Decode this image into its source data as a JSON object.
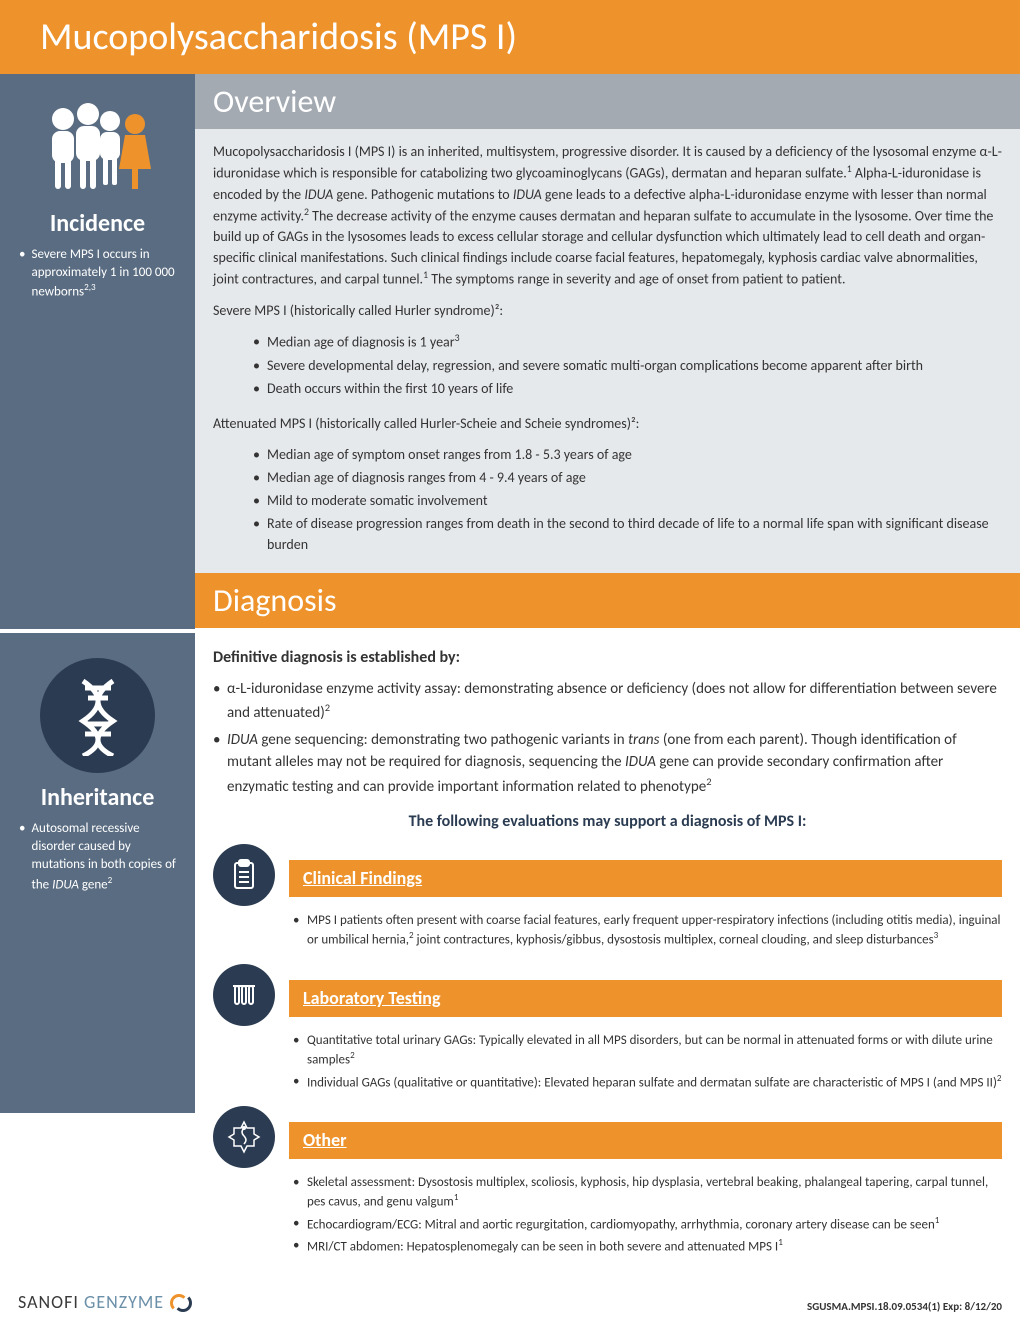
{
  "colors": {
    "orange": "#ee932b",
    "slate": "#5a6c81",
    "dark": "#2b3c52",
    "headerGray": "#a3aab2",
    "lightBg": "#e6e9ec"
  },
  "title": "Mucopolysaccharidosis (MPS I)",
  "sidebar": {
    "incidence": {
      "title": "Incidence",
      "text": "Severe MPS I occurs in approximately 1 in 100 000 newborns",
      "sup": "2,3"
    },
    "inheritance": {
      "title": "Inheritance",
      "text_pre": "Autosomal recessive disorder caused by mutations in both copies of the ",
      "text_gene": "IDUA",
      "text_post": " gene",
      "sup": "2"
    }
  },
  "overview": {
    "heading": "Overview",
    "para_parts": [
      {
        "t": "Mucopolysaccharidosis I (MPS I) is an inherited, multisystem, progressive disorder. It is caused by a deficiency of the lysosomal enzyme α-L-iduronidase which is responsible for catabolizing two glycoaminoglycans (GAGs), dermatan and heparan sulfate."
      },
      {
        "sup": "1"
      },
      {
        "t": " Alpha-L-iduronidase is encoded by the "
      },
      {
        "i": "IDUA"
      },
      {
        "t": " gene. Pathogenic mutations to "
      },
      {
        "i": "IDUA"
      },
      {
        "t": " gene leads to a defective alpha-L-iduronidase enzyme with lesser than normal enzyme activity."
      },
      {
        "sup": "2"
      },
      {
        "t": " The decrease activity of the enzyme causes dermatan and heparan sulfate to accumulate in the lysosome. Over time the build up of GAGs in the lysosomes leads to excess cellular storage and cellular dysfunction which ultimately lead to cell death and organ-specific clinical manifestations. Such clinical findings include coarse facial features, hepatomegaly, kyphosis cardiac valve abnormalities, joint contractures, and carpal tunnel."
      },
      {
        "sup": "1"
      },
      {
        "t": " The symptoms range in severity and age of onset from patient to patient."
      }
    ],
    "severe_intro": "Severe MPS I (historically called Hurler syndrome)²:",
    "severe_items": [
      {
        "text": "Median age of diagnosis is 1 year",
        "sup": "3"
      },
      {
        "text": "Severe developmental delay, regression, and severe somatic multi-organ complications become apparent after birth"
      },
      {
        "text": "Death occurs within the first 10 years of life"
      }
    ],
    "atten_intro": "Attenuated MPS I (historically called Hurler-Scheie and Scheie syndromes)²:",
    "atten_items": [
      {
        "text": "Median age of symptom onset ranges from 1.8 - 5.3 years of age"
      },
      {
        "text": "Median age of diagnosis ranges from 4 - 9.4 years of age"
      },
      {
        "text": "Mild to moderate somatic involvement"
      },
      {
        "text": "Rate of disease progression ranges from death in the second to third decade of life to a normal life span with significant disease burden"
      }
    ]
  },
  "diagnosis": {
    "heading": "Diagnosis",
    "sub": "Definitive diagnosis is established by:",
    "bullets": [
      {
        "parts": [
          {
            "t": "α-L-iduronidase enzyme activity assay: demonstrating absence or deficiency (does not allow for differentiation between severe and attenuated)"
          },
          {
            "sup": "2"
          }
        ]
      },
      {
        "parts": [
          {
            "i": "IDUA "
          },
          {
            "t": "gene sequencing: demonstrating two pathogenic variants in "
          },
          {
            "i": "trans "
          },
          {
            "t": "(one from each parent). Though identification of mutant alleles may not be required for diagnosis, sequencing the "
          },
          {
            "i": "IDUA"
          },
          {
            "t": " gene can provide secondary confirmation after enzymatic testing and can provide important information related to phenotype"
          },
          {
            "sup": "2"
          }
        ]
      }
    ],
    "support_line": "The following evaluations may support a diagnosis of MPS I:",
    "sections": [
      {
        "icon": "clipboard",
        "title": "Clinical Findings",
        "items": [
          {
            "parts": [
              {
                "t": "MPS I patients often present with coarse facial features, early frequent upper-respiratory infections (including otitis media), inguinal or umbilical hernia,"
              },
              {
                "sup": "2"
              },
              {
                "t": "  joint contractures, kyphosis/gibbus, dysostosis multiplex, corneal clouding, and sleep disturbances"
              },
              {
                "sup": "3"
              }
            ]
          }
        ]
      },
      {
        "icon": "tubes",
        "title": "Laboratory Testing",
        "items": [
          {
            "parts": [
              {
                "t": "Quantitative total urinary GAGs: Typically elevated in all MPS disorders, but can be normal in attenuated forms or with dilute urine samples"
              },
              {
                "sup": "2"
              }
            ]
          },
          {
            "parts": [
              {
                "t": "Individual GAGs (qualitative or quantitative): Elevated heparan sulfate and dermatan sulfate are characteristic of MPS I (and MPS II)"
              },
              {
                "sup": "2"
              }
            ]
          }
        ]
      },
      {
        "icon": "medical",
        "title": "Other",
        "items": [
          {
            "parts": [
              {
                "t": "Skeletal assessment: Dysostosis multiplex, scoliosis, kyphosis, hip dysplasia, vertebral beaking, phalangeal tapering, carpal tunnel, pes cavus, and genu valgum"
              },
              {
                "sup": "1"
              }
            ]
          },
          {
            "parts": [
              {
                "t": "Echocardiogram/ECG: Mitral and aortic regurgitation, cardiomyopathy, arrhythmia, coronary artery disease can be seen"
              },
              {
                "sup": "1"
              }
            ]
          },
          {
            "parts": [
              {
                "t": "MRI/CT abdomen: Hepatosplenomegaly can be seen in both severe and attenuated MPS I"
              },
              {
                "sup": "1"
              }
            ]
          }
        ]
      }
    ]
  },
  "footer": {
    "logo1": "SANOFI ",
    "logo2": "GENZYME",
    "code": "SGUSMA.MPSI.18.09.0534(1)   Exp: 8/12/20"
  }
}
